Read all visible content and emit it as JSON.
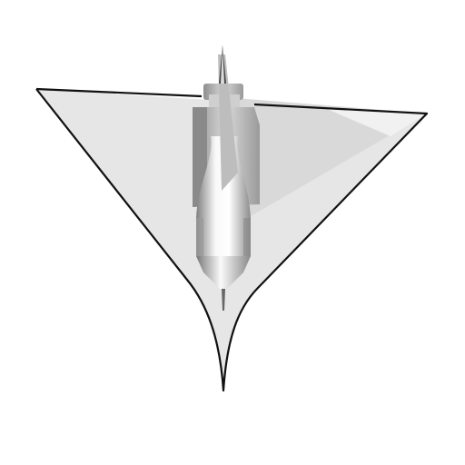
{
  "scene": {
    "subject": "aircraft-render",
    "background_color": "#ffffff",
    "outline_color": "#111111",
    "wing_color": "#e4e4e4",
    "wing_shade_color": "#d2d2d2",
    "body_light_color": "#f7f7f7",
    "body_shadow_color": "#8a8a8a"
  }
}
